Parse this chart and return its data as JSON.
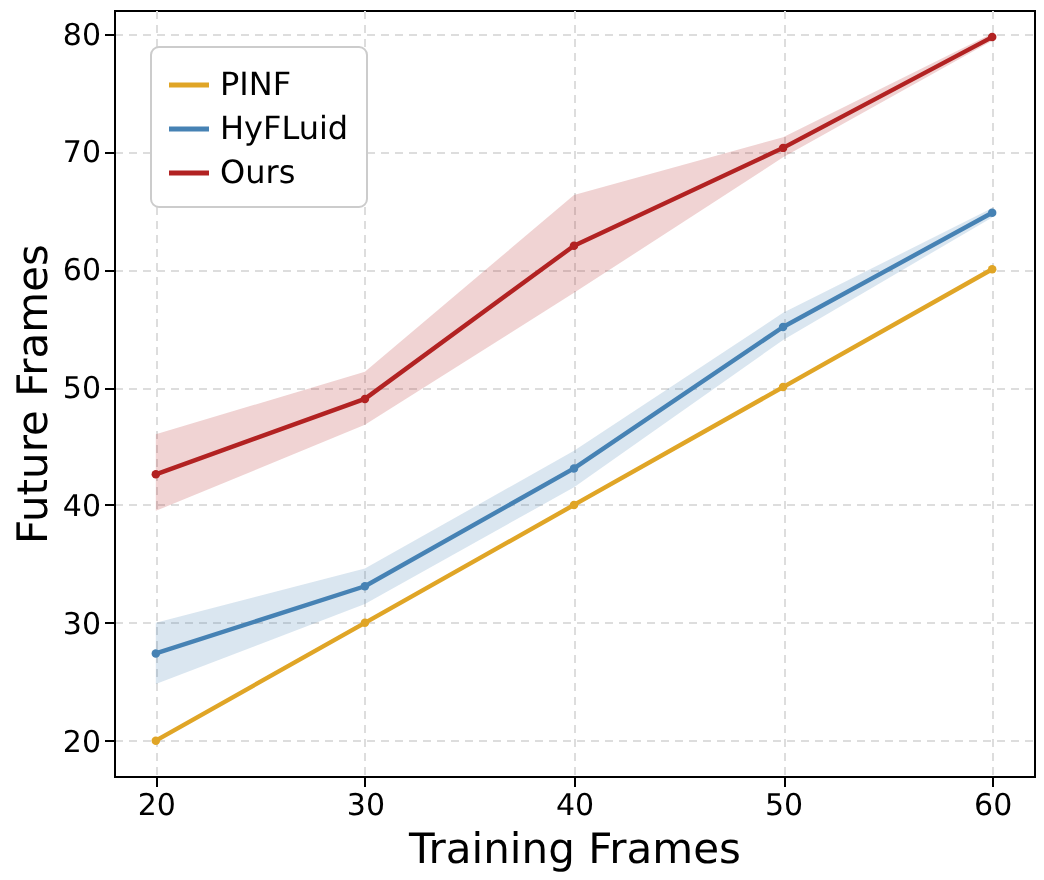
{
  "chart_data": {
    "type": "line",
    "xlabel": "Training Frames",
    "ylabel": "Future Frames",
    "x": [
      20,
      30,
      40,
      50,
      60
    ],
    "series": [
      {
        "name": "PINF",
        "color": "#e0a526",
        "values": [
          20,
          30,
          40,
          50,
          60
        ]
      },
      {
        "name": "HyFLuid",
        "color": "#4682b4",
        "values": [
          27.4,
          33.1,
          43.1,
          55.1,
          64.8
        ],
        "lower": [
          24.8,
          31.6,
          41.5,
          54.0,
          64.4
        ],
        "upper": [
          30.0,
          34.6,
          44.6,
          56.3,
          65.2
        ]
      },
      {
        "name": "Ours",
        "color": "#b22222",
        "values": [
          42.6,
          49,
          62,
          70.3,
          79.7
        ],
        "lower": [
          39.5,
          46.8,
          58,
          69.5,
          79.4
        ],
        "upper": [
          46,
          51.3,
          66.3,
          71.2,
          80
        ]
      }
    ],
    "xlim": [
      18,
      62
    ],
    "xticks": [
      20,
      30,
      40,
      50,
      60
    ],
    "ylim": [
      17,
      82
    ],
    "yticks": [
      20,
      30,
      40,
      50,
      60,
      70,
      80
    ],
    "grid": true,
    "legend": "top left",
    "marker": "circle",
    "line_style": "solid"
  }
}
